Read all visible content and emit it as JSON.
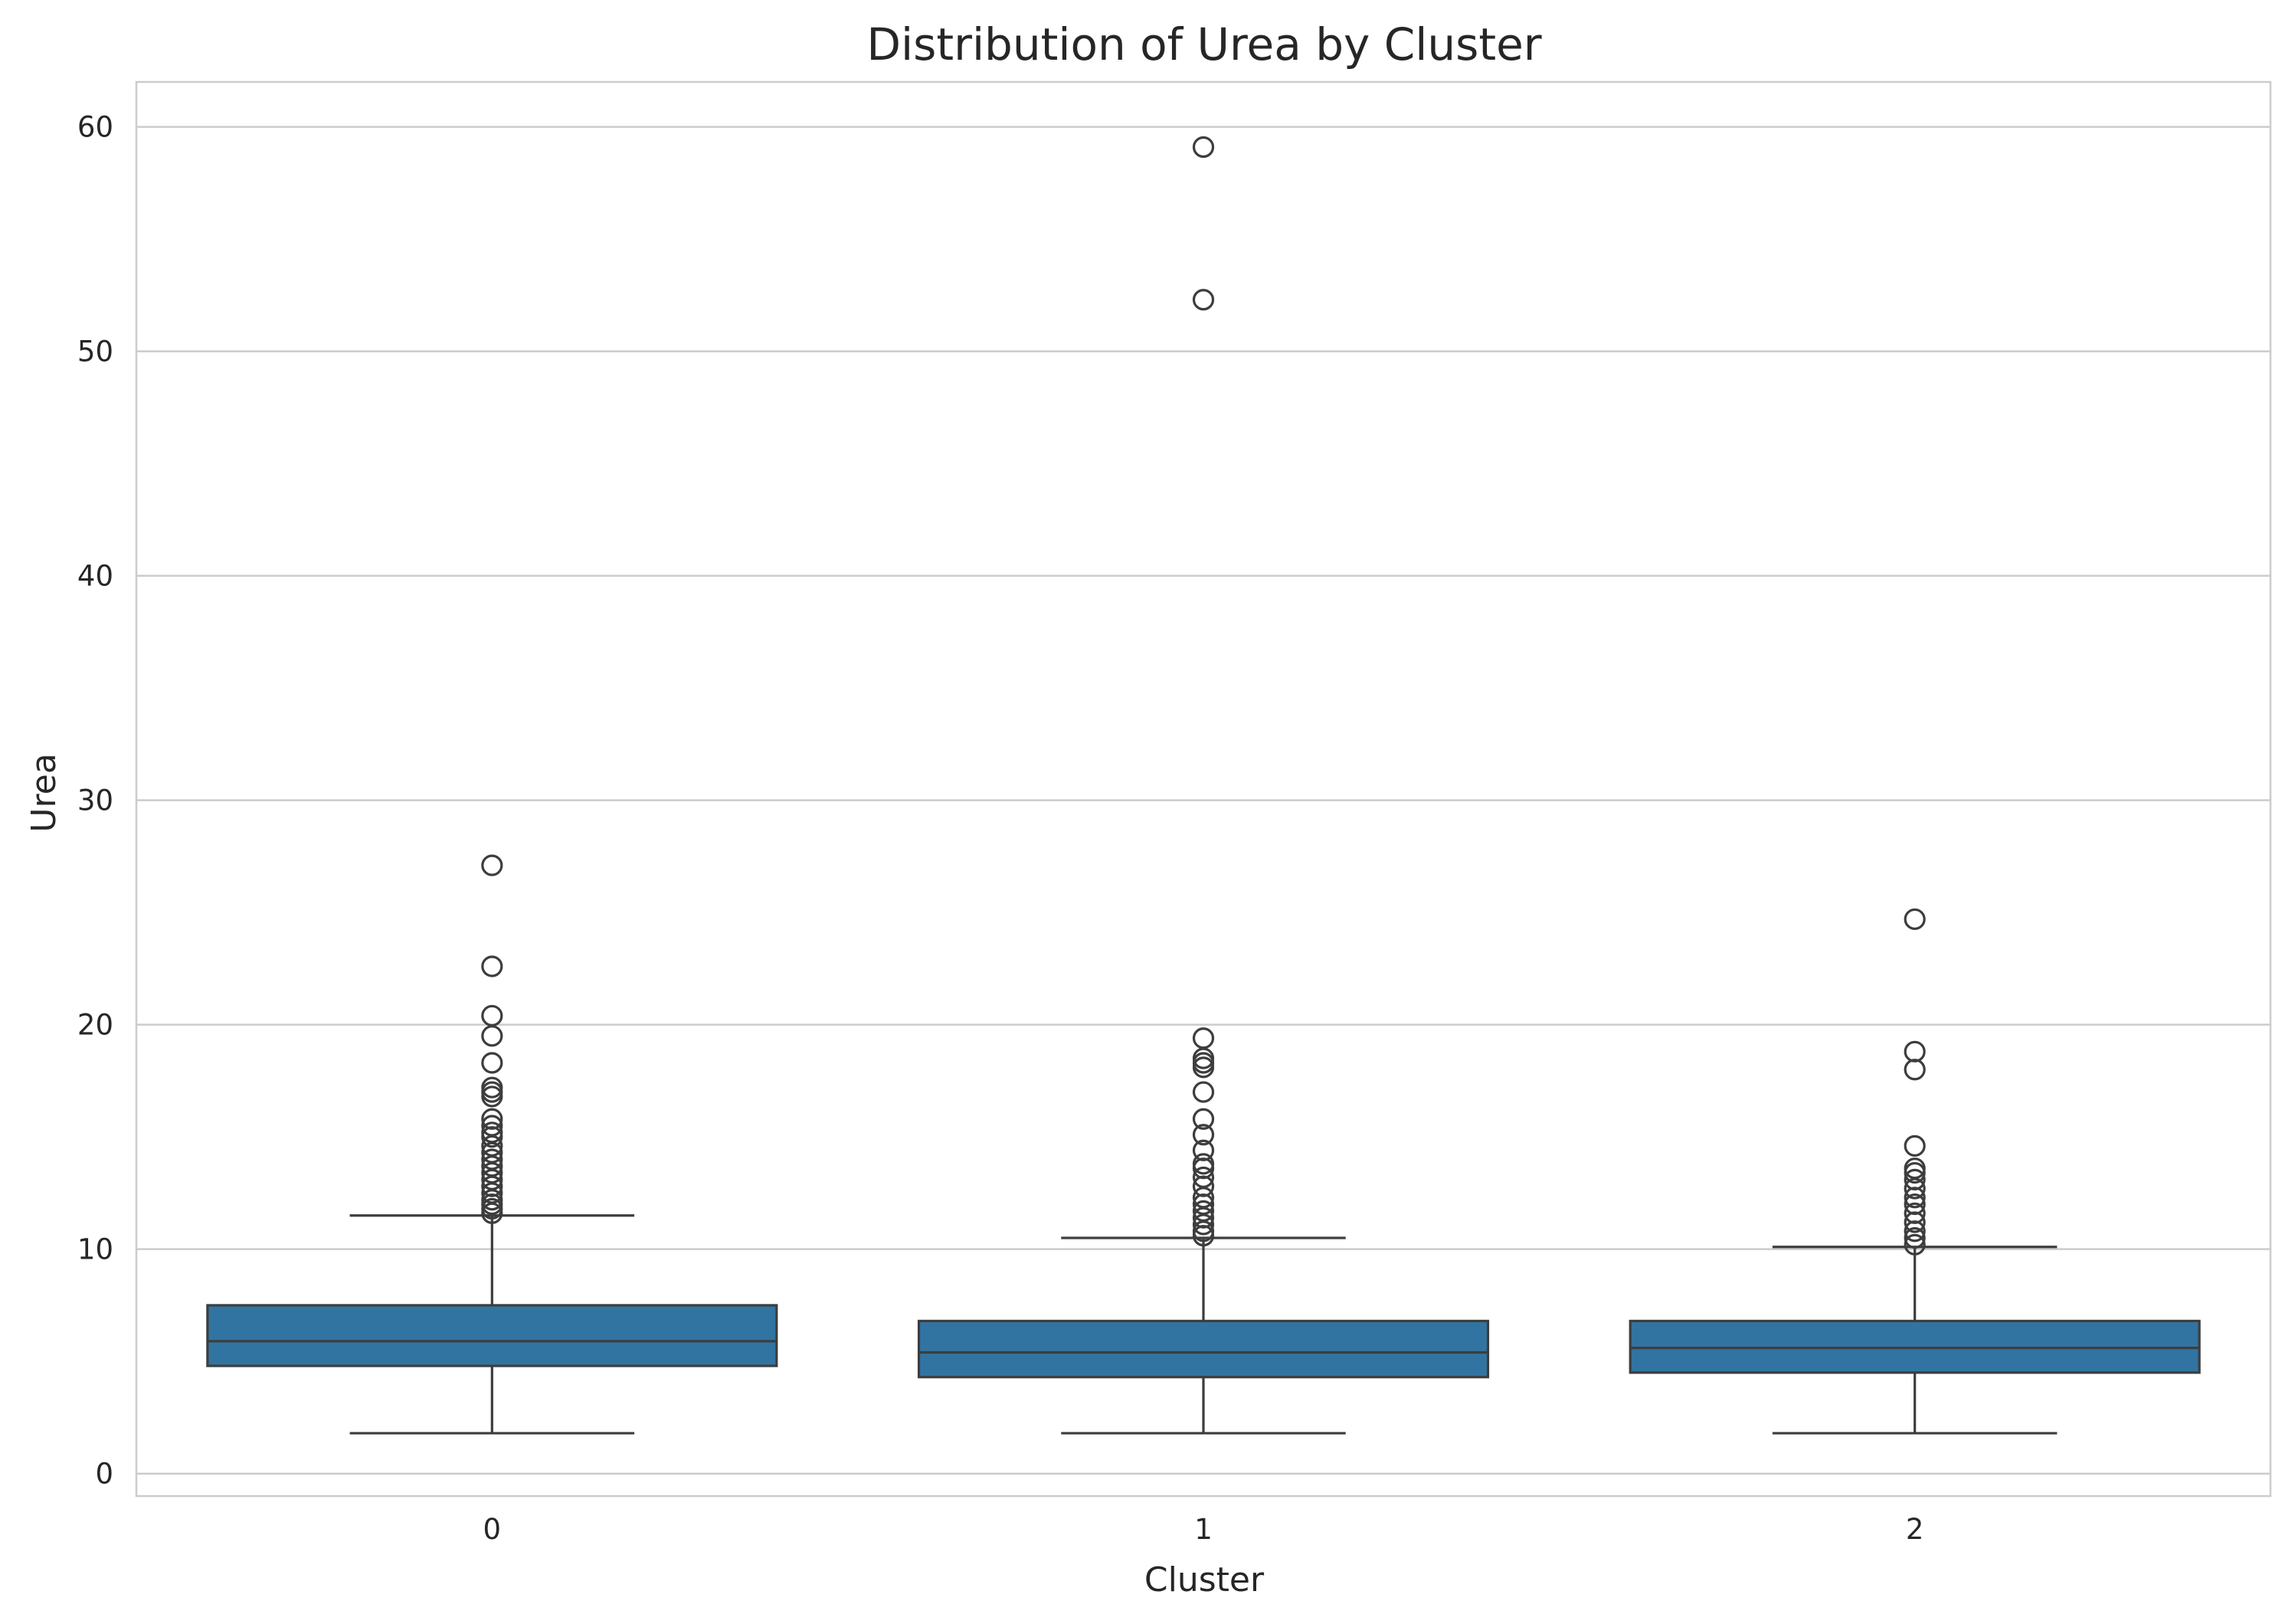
{
  "chart_data": {
    "type": "box",
    "title": "Distribution of Urea by Cluster",
    "xlabel": "Cluster",
    "ylabel": "Urea",
    "ylim": [
      -1,
      62
    ],
    "yticks": [
      0,
      10,
      20,
      30,
      40,
      50,
      60
    ],
    "grid": true,
    "legend": "none",
    "box_color": "#3274a1",
    "line_color": "#3d3d3d",
    "categories": [
      "0",
      "1",
      "2"
    ],
    "boxes": [
      {
        "category": "0",
        "whisker_low": 1.8,
        "q1": 4.8,
        "median": 5.9,
        "q3": 7.5,
        "whisker_high": 11.5,
        "outliers": [
          27.1,
          22.6,
          20.4,
          19.5,
          18.3,
          17.2,
          17.0,
          16.8,
          15.8,
          15.5,
          15.2,
          15.0,
          14.6,
          14.3,
          14.0,
          13.7,
          13.4,
          13.1,
          12.8,
          12.5,
          12.2,
          12.0,
          11.8,
          11.6
        ]
      },
      {
        "category": "1",
        "whisker_low": 1.8,
        "q1": 4.3,
        "median": 5.4,
        "q3": 6.8,
        "whisker_high": 10.5,
        "outliers": [
          59.1,
          52.3,
          19.4,
          18.5,
          18.3,
          18.1,
          17.0,
          15.8,
          15.1,
          14.4,
          13.8,
          13.6,
          13.2,
          12.8,
          12.3,
          12.0,
          11.7,
          11.4,
          11.1,
          10.8,
          10.6
        ]
      },
      {
        "category": "2",
        "whisker_low": 1.8,
        "q1": 4.5,
        "median": 5.6,
        "q3": 6.8,
        "whisker_high": 10.1,
        "outliers": [
          24.7,
          18.8,
          18.0,
          14.6,
          13.6,
          13.4,
          13.1,
          12.7,
          12.3,
          12.0,
          11.6,
          11.2,
          10.8,
          10.5,
          10.2
        ]
      }
    ]
  }
}
